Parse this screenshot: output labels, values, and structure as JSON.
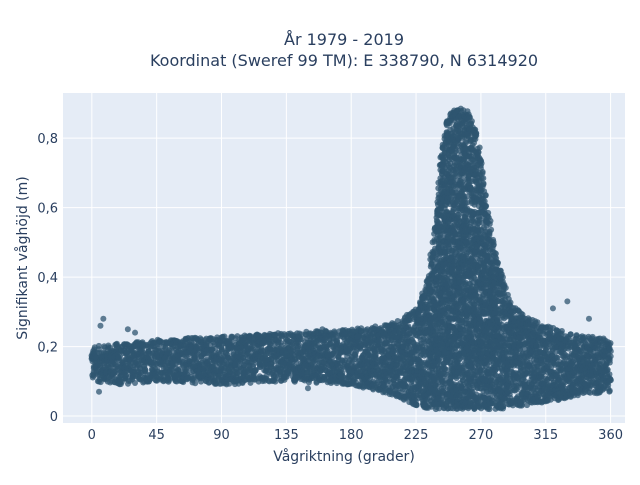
{
  "chart_data": {
    "type": "scatter",
    "title_line1": "År 1979 - 2019",
    "title_line2": "Koordinat (Sweref 99 TM): E 338790, N 6314920",
    "xlabel": "Vågriktning (grader)",
    "ylabel": "Signifikant våghöjd (m)",
    "xlim": [
      -20,
      370
    ],
    "ylim": [
      -0.02,
      0.93
    ],
    "xticks": [
      0,
      45,
      90,
      135,
      180,
      225,
      270,
      315,
      360
    ],
    "xtick_labels": [
      "0",
      "45",
      "90",
      "135",
      "180",
      "225",
      "270",
      "315",
      "360"
    ],
    "yticks": [
      0,
      0.2,
      0.4,
      0.6,
      0.8
    ],
    "ytick_labels": [
      "0",
      "0,2",
      "0,4",
      "0,6",
      "0,8"
    ],
    "grid": true,
    "background": "#e5ecf6",
    "marker_color": "#2f5670",
    "envelope": {
      "direction": [
        0,
        20,
        45,
        90,
        135,
        180,
        200,
        215,
        225,
        232,
        238,
        242,
        246,
        250,
        255,
        260,
        265,
        270,
        275,
        280,
        285,
        290,
        300,
        315,
        330,
        345,
        360
      ],
      "upper": [
        0.2,
        0.21,
        0.22,
        0.23,
        0.24,
        0.25,
        0.26,
        0.28,
        0.31,
        0.38,
        0.55,
        0.75,
        0.85,
        0.88,
        0.89,
        0.88,
        0.85,
        0.75,
        0.6,
        0.48,
        0.4,
        0.33,
        0.29,
        0.26,
        0.24,
        0.23,
        0.22
      ],
      "lower": [
        0.1,
        0.09,
        0.1,
        0.09,
        0.1,
        0.09,
        0.07,
        0.05,
        0.03,
        0.02,
        0.02,
        0.02,
        0.02,
        0.02,
        0.02,
        0.02,
        0.02,
        0.02,
        0.02,
        0.02,
        0.02,
        0.03,
        0.03,
        0.04,
        0.05,
        0.06,
        0.07
      ]
    }
  }
}
